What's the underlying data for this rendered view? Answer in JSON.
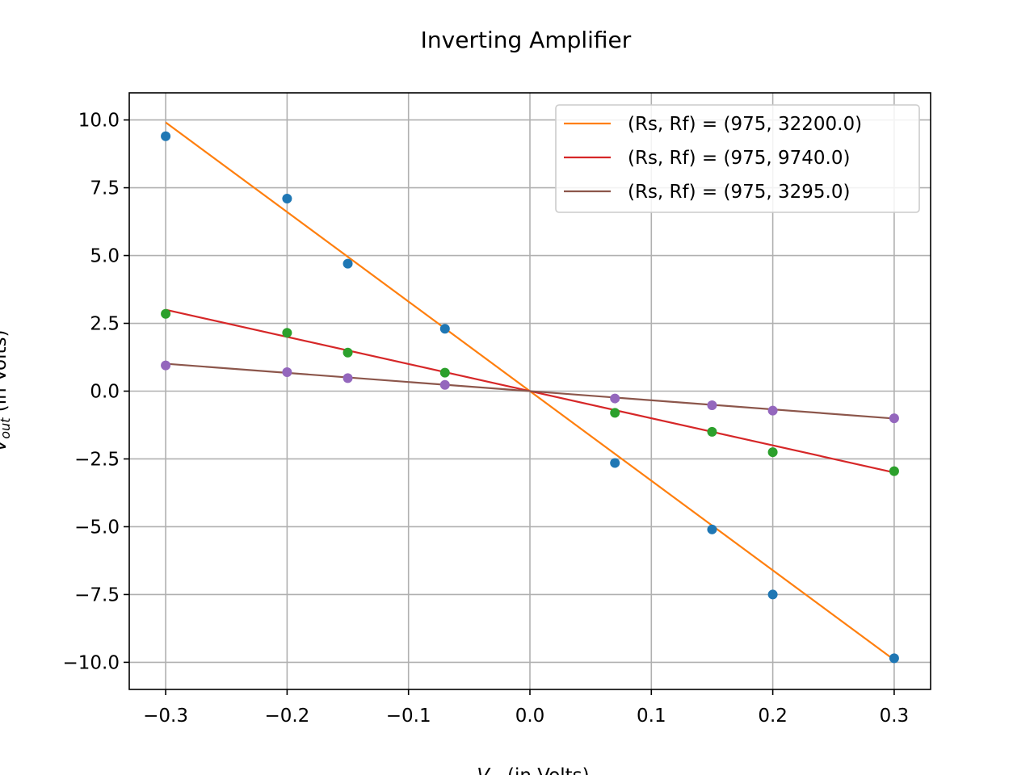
{
  "chart_data": {
    "type": "scatter",
    "title": "Inverting Amplifier",
    "xlabel": "V_in (in Volts)",
    "ylabel": "V_out (in Volts)",
    "xlim": [
      -0.33,
      0.33
    ],
    "ylim": [
      -11.0,
      11.0
    ],
    "grid": true,
    "legend_position": "top-right",
    "x_ticks": [
      -0.3,
      -0.2,
      -0.1,
      0.0,
      0.1,
      0.2,
      0.3
    ],
    "x_tick_labels": [
      "−0.3",
      "−0.2",
      "−0.1",
      "0.0",
      "0.1",
      "0.2",
      "0.3"
    ],
    "y_ticks": [
      10.0,
      7.5,
      5.0,
      2.5,
      0.0,
      -2.5,
      -5.0,
      -7.5,
      -10.0
    ],
    "y_tick_labels": [
      "10.0",
      "7.5",
      "5.0",
      "2.5",
      "0.0",
      "−2.5",
      "−5.0",
      "−7.5",
      "−10.0"
    ],
    "scatter_series": [
      {
        "color": "#1f77b4",
        "x": [
          -0.3,
          -0.2,
          -0.15,
          -0.07,
          0.07,
          0.15,
          0.2,
          0.3
        ],
        "y": [
          9.4,
          7.1,
          4.7,
          2.3,
          -2.65,
          -5.1,
          -7.5,
          -9.85
        ]
      },
      {
        "color": "#2ca02c",
        "x": [
          -0.3,
          -0.2,
          -0.15,
          -0.07,
          0.07,
          0.15,
          0.2,
          0.3
        ],
        "y": [
          2.85,
          2.15,
          1.42,
          0.68,
          -0.8,
          -1.5,
          -2.25,
          -2.95
        ]
      },
      {
        "color": "#9467bd",
        "x": [
          -0.3,
          -0.2,
          -0.15,
          -0.07,
          0.07,
          0.15,
          0.2,
          0.3
        ],
        "y": [
          0.95,
          0.7,
          0.48,
          0.23,
          -0.27,
          -0.52,
          -0.72,
          -1.0
        ]
      }
    ],
    "line_series": [
      {
        "name": "(Rs, Rf) = (975, 32200.0)",
        "color": "#ff7f0e",
        "x": [
          -0.3,
          0.3
        ],
        "y": [
          9.91,
          -9.91
        ]
      },
      {
        "name": "(Rs, Rf) = (975, 9740.0)",
        "color": "#d62728",
        "x": [
          -0.3,
          0.3
        ],
        "y": [
          3.0,
          -3.0
        ]
      },
      {
        "name": "(Rs, Rf) = (975, 3295.0)",
        "color": "#8c564b",
        "x": [
          -0.3,
          0.3
        ],
        "y": [
          1.01,
          -1.01
        ]
      }
    ]
  }
}
